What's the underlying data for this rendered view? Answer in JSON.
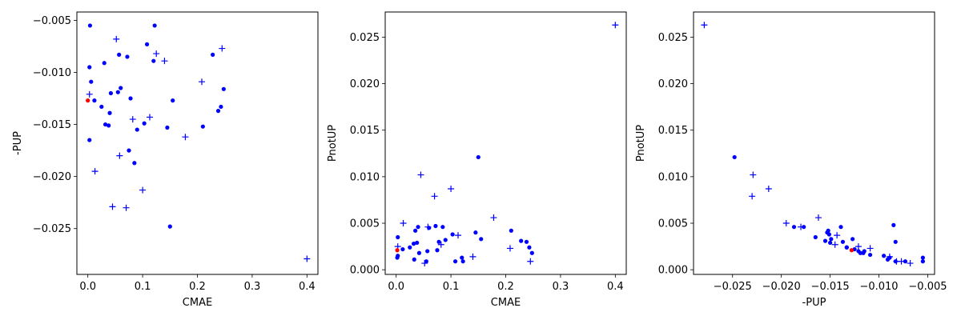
{
  "chart_data": [
    {
      "type": "scatter",
      "xlabel": "CMAE",
      "ylabel": "-PUP",
      "xlim": [
        -0.02,
        0.42
      ],
      "ylim": [
        -0.0294,
        -0.0042
      ],
      "xticks": [
        0.0,
        0.1,
        0.2,
        0.3,
        0.4
      ],
      "xtick_labels": [
        "0.0",
        "0.1",
        "0.2",
        "0.3",
        "0.4"
      ],
      "yticks": [
        -0.025,
        -0.02,
        -0.015,
        -0.01,
        -0.005
      ],
      "ytick_labels": [
        "−0.025",
        "−0.020",
        "−0.015",
        "−0.010",
        "−0.005"
      ],
      "series": [
        {
          "marker": "dot",
          "color": "#0000ff",
          "x": [
            0.004,
            0.003,
            0.006,
            0.012,
            0.025,
            0.03,
            0.032,
            0.038,
            0.04,
            0.042,
            0.003,
            0.055,
            0.057,
            0.06,
            0.072,
            0.075,
            0.078,
            0.085,
            0.09,
            0.103,
            0.108,
            0.12,
            0.122,
            0.145,
            0.15,
            0.155,
            0.21,
            0.228,
            0.238,
            0.243,
            0.248
          ],
          "y": [
            -0.0055,
            -0.0095,
            -0.0109,
            -0.0127,
            -0.0133,
            -0.0091,
            -0.015,
            -0.0151,
            -0.0139,
            -0.012,
            -0.0165,
            -0.0119,
            -0.0083,
            -0.0115,
            -0.0085,
            -0.0175,
            -0.0125,
            -0.0187,
            -0.0155,
            -0.0149,
            -0.0073,
            -0.0089,
            -0.0055,
            -0.0153,
            -0.0248,
            -0.0127,
            -0.0152,
            -0.0083,
            -0.0137,
            -0.0133,
            -0.0116
          ]
        },
        {
          "marker": "plus",
          "color": "#0000ff",
          "x": [
            0.003,
            0.013,
            0.045,
            0.052,
            0.058,
            0.07,
            0.082,
            0.1,
            0.113,
            0.125,
            0.14,
            0.178,
            0.208,
            0.245,
            0.4
          ],
          "y": [
            -0.0121,
            -0.0195,
            -0.0229,
            -0.0068,
            -0.018,
            -0.023,
            -0.0145,
            -0.0213,
            -0.0143,
            -0.0082,
            -0.0089,
            -0.0162,
            -0.0109,
            -0.0077,
            -0.0279
          ]
        },
        {
          "marker": "dot",
          "color": "#ff0000",
          "x": [
            0.0
          ],
          "y": [
            -0.0127
          ]
        }
      ]
    },
    {
      "type": "scatter",
      "xlabel": "CMAE",
      "ylabel": "PnotUP",
      "xlim": [
        -0.02,
        0.42
      ],
      "ylim": [
        -0.0005,
        0.0277
      ],
      "xticks": [
        0.0,
        0.1,
        0.2,
        0.3,
        0.4
      ],
      "xtick_labels": [
        "0.0",
        "0.1",
        "0.2",
        "0.3",
        "0.4"
      ],
      "yticks": [
        0.0,
        0.005,
        0.01,
        0.015,
        0.02,
        0.025
      ],
      "ytick_labels": [
        "0.000",
        "0.005",
        "0.010",
        "0.015",
        "0.020",
        "0.025"
      ],
      "series": [
        {
          "marker": "dot",
          "color": "#0000ff",
          "x": [
            0.003,
            0.002,
            0.003,
            0.012,
            0.025,
            0.032,
            0.033,
            0.038,
            0.04,
            0.042,
            0.055,
            0.057,
            0.06,
            0.072,
            0.075,
            0.078,
            0.085,
            0.09,
            0.103,
            0.108,
            0.12,
            0.122,
            0.145,
            0.15,
            0.155,
            0.21,
            0.228,
            0.238,
            0.243,
            0.248,
            0.035
          ],
          "y": [
            0.0035,
            0.0013,
            0.0015,
            0.0022,
            0.0024,
            0.0028,
            0.0011,
            0.0029,
            0.0046,
            0.0018,
            0.0009,
            0.002,
            0.0045,
            0.0047,
            0.0021,
            0.003,
            0.0046,
            0.0032,
            0.0038,
            0.0009,
            0.0013,
            0.0009,
            0.004,
            0.0121,
            0.0033,
            0.0042,
            0.0031,
            0.003,
            0.0024,
            0.0018,
            0.0042
          ]
        },
        {
          "marker": "plus",
          "color": "#0000ff",
          "x": [
            0.003,
            0.013,
            0.045,
            0.052,
            0.058,
            0.07,
            0.082,
            0.1,
            0.113,
            0.14,
            0.178,
            0.208,
            0.245,
            0.4
          ],
          "y": [
            0.0025,
            0.005,
            0.0102,
            0.0007,
            0.0046,
            0.0079,
            0.0027,
            0.0087,
            0.0037,
            0.0014,
            0.0056,
            0.0023,
            0.0009,
            0.0263
          ]
        },
        {
          "marker": "dot",
          "color": "#ff0000",
          "x": [
            0.002
          ],
          "y": [
            0.0021
          ]
        }
      ]
    },
    {
      "type": "scatter",
      "xlabel": "-PUP",
      "ylabel": "PnotUP",
      "xlim": [
        -0.029,
        -0.0043
      ],
      "ylim": [
        -0.0005,
        0.0277
      ],
      "xticks": [
        -0.025,
        -0.02,
        -0.015,
        -0.01,
        -0.005
      ],
      "xtick_labels": [
        "−0.025",
        "−0.020",
        "−0.015",
        "−0.010",
        "−0.005"
      ],
      "yticks": [
        0.0,
        0.005,
        0.01,
        0.015,
        0.02,
        0.025
      ],
      "ytick_labels": [
        "0.000",
        "0.005",
        "0.010",
        "0.015",
        "0.020",
        "0.025"
      ],
      "series": [
        {
          "marker": "dot",
          "color": "#0000ff",
          "x": [
            -0.0248,
            -0.0187,
            -0.0177,
            -0.0165,
            -0.0155,
            -0.0153,
            -0.0152,
            -0.0151,
            -0.015,
            -0.0149,
            -0.0139,
            -0.0137,
            -0.0133,
            -0.0133,
            -0.0127,
            -0.0125,
            -0.0121,
            -0.0119,
            -0.0116,
            -0.0115,
            -0.0109,
            -0.0095,
            -0.0091,
            -0.0089,
            -0.0085,
            -0.0083,
            -0.0083,
            -0.0073,
            -0.0055,
            -0.0055
          ],
          "y": [
            0.0121,
            0.0046,
            0.0046,
            0.0035,
            0.0031,
            0.004,
            0.0042,
            0.0038,
            0.0029,
            0.0033,
            0.0046,
            0.003,
            0.0024,
            0.0024,
            0.0033,
            0.0022,
            0.002,
            0.0018,
            0.0018,
            0.002,
            0.0016,
            0.0015,
            0.0011,
            0.0013,
            0.0048,
            0.003,
            0.0009,
            0.0009,
            0.0013,
            0.0009
          ]
        },
        {
          "marker": "plus",
          "color": "#0000ff",
          "x": [
            -0.0279,
            -0.023,
            -0.0229,
            -0.0213,
            -0.0195,
            -0.018,
            -0.0162,
            -0.0145,
            -0.0143,
            -0.0121,
            -0.0109,
            -0.0089,
            -0.0082,
            -0.0077,
            -0.0068
          ],
          "y": [
            0.0263,
            0.0079,
            0.0102,
            0.0087,
            0.005,
            0.0046,
            0.0056,
            0.0027,
            0.0037,
            0.0025,
            0.0023,
            0.0014,
            0.0009,
            0.0009,
            0.0007
          ]
        },
        {
          "marker": "dot",
          "color": "#ff0000",
          "x": [
            -0.0128
          ],
          "y": [
            0.0021
          ]
        }
      ]
    }
  ]
}
